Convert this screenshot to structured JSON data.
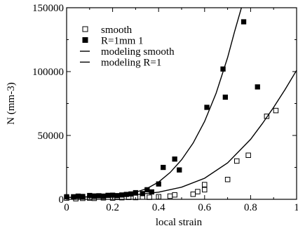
{
  "chart_data": {
    "type": "scatter",
    "title": "",
    "xlabel": "local strain",
    "ylabel": "N (mm-3)",
    "xlim": [
      0,
      1
    ],
    "ylim": [
      0,
      150000
    ],
    "xticks": [
      0,
      0.2,
      0.4,
      0.6,
      0.8,
      1
    ],
    "xtick_labels": [
      "0",
      "0.2",
      "0.4",
      "0.6",
      "0.8",
      "1"
    ],
    "yticks": [
      0,
      50000,
      100000,
      150000
    ],
    "ytick_labels": [
      "0",
      "50000",
      "100000",
      "150000"
    ],
    "grid": false,
    "legend_position": "top-left",
    "series": [
      {
        "name": "smooth",
        "kind": "points",
        "marker": "open-square",
        "color": "#000000",
        "points": [
          [
            0.0,
            1000
          ],
          [
            0.04,
            500
          ],
          [
            0.07,
            800
          ],
          [
            0.1,
            1000
          ],
          [
            0.12,
            800
          ],
          [
            0.16,
            1200
          ],
          [
            0.2,
            1000
          ],
          [
            0.22,
            1500
          ],
          [
            0.24,
            1300
          ],
          [
            0.27,
            1500
          ],
          [
            0.3,
            1400
          ],
          [
            0.33,
            1800
          ],
          [
            0.36,
            1600
          ],
          [
            0.4,
            2000
          ],
          [
            0.45,
            2500
          ],
          [
            0.47,
            3500
          ],
          [
            0.55,
            4000
          ],
          [
            0.57,
            6000
          ],
          [
            0.6,
            7500
          ],
          [
            0.6,
            11500
          ],
          [
            0.7,
            15500
          ],
          [
            0.74,
            30000
          ],
          [
            0.79,
            34500
          ],
          [
            0.87,
            65000
          ],
          [
            0.91,
            69500
          ]
        ]
      },
      {
        "name": "R=1mm 1",
        "kind": "points",
        "marker": "filled-square",
        "color": "#000000",
        "points": [
          [
            0.0,
            2000
          ],
          [
            0.03,
            2000
          ],
          [
            0.05,
            2500
          ],
          [
            0.07,
            2200
          ],
          [
            0.1,
            3000
          ],
          [
            0.12,
            2600
          ],
          [
            0.14,
            2800
          ],
          [
            0.16,
            2500
          ],
          [
            0.18,
            3100
          ],
          [
            0.2,
            3200
          ],
          [
            0.22,
            2900
          ],
          [
            0.24,
            3400
          ],
          [
            0.26,
            3800
          ],
          [
            0.28,
            4200
          ],
          [
            0.3,
            5200
          ],
          [
            0.33,
            4500
          ],
          [
            0.35,
            7500
          ],
          [
            0.37,
            5800
          ],
          [
            0.4,
            12000
          ],
          [
            0.42,
            25000
          ],
          [
            0.47,
            31500
          ],
          [
            0.49,
            23000
          ],
          [
            0.61,
            72000
          ],
          [
            0.68,
            102000
          ],
          [
            0.69,
            80000
          ],
          [
            0.77,
            139000
          ],
          [
            0.83,
            88000
          ]
        ]
      },
      {
        "name": "modeling smooth",
        "kind": "curve",
        "color": "#000000",
        "x": [
          0.0,
          0.1,
          0.2,
          0.3,
          0.4,
          0.5,
          0.6,
          0.7,
          0.8,
          0.85,
          0.9,
          0.95,
          1.0
        ],
        "y": [
          1500,
          1900,
          2500,
          3600,
          5600,
          9500,
          16500,
          28500,
          47000,
          59000,
          72000,
          86000,
          101000
        ]
      },
      {
        "name": "modeling R=1",
        "kind": "curve",
        "color": "#000000",
        "x": [
          0.0,
          0.1,
          0.2,
          0.3,
          0.35,
          0.4,
          0.45,
          0.5,
          0.55,
          0.6,
          0.65,
          0.7,
          0.73,
          0.76
        ],
        "y": [
          1500,
          2000,
          3000,
          5500,
          8500,
          13500,
          21000,
          31000,
          44000,
          61000,
          83000,
          111000,
          131000,
          150000
        ]
      }
    ]
  }
}
